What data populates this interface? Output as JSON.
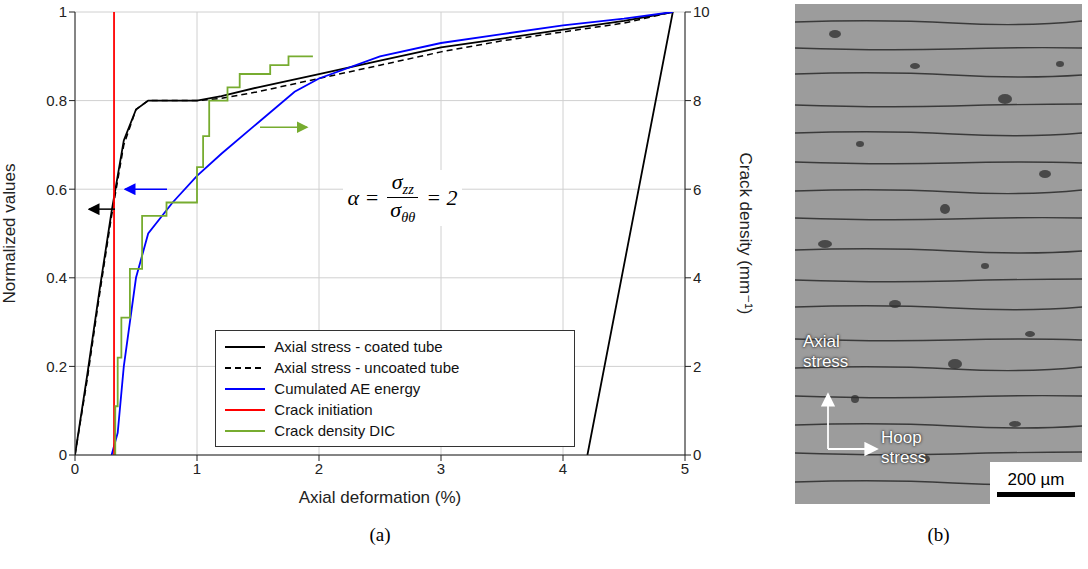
{
  "chart_data": {
    "type": "line",
    "panel_label": "(a)",
    "xlabel": "Axial deformation (%)",
    "ylabel": "Normalized values",
    "y2label": "Crack density (mm⁻¹)",
    "xlim": [
      0,
      5
    ],
    "xticks": [
      0,
      1,
      2,
      3,
      4,
      5
    ],
    "ylim": [
      0,
      1
    ],
    "yticks": [
      0,
      0.2,
      0.4,
      0.6,
      0.8,
      1
    ],
    "y2lim": [
      0,
      10
    ],
    "y2ticks": [
      0,
      2,
      4,
      6,
      8,
      10
    ],
    "grid": true,
    "legend": "lower right",
    "annotation": {
      "lhs": "α =",
      "numerator": "σzz",
      "denominator": "σθθ",
      "rhs": "= 2"
    },
    "series": [
      {
        "name": "Axial stress - coated tube",
        "color": "#000000",
        "line_style": "solid",
        "type": "line",
        "x": [
          0,
          0.1,
          0.2,
          0.3,
          0.4,
          0.5,
          0.6,
          0.8,
          1.0,
          1.2,
          1.5,
          2.0,
          2.5,
          3.0,
          3.5,
          4.0,
          4.5,
          4.9,
          4.2
        ],
        "values": [
          0,
          0.18,
          0.37,
          0.55,
          0.71,
          0.78,
          0.8,
          0.8,
          0.8,
          0.81,
          0.83,
          0.86,
          0.89,
          0.92,
          0.94,
          0.96,
          0.98,
          1.0,
          0
        ]
      },
      {
        "name": "Axial stress - uncoated tube",
        "color": "#000000",
        "line_style": "dashed",
        "type": "line",
        "x": [
          0,
          0.1,
          0.2,
          0.3,
          0.4,
          0.5,
          0.6,
          0.8,
          1.0,
          1.2,
          1.5,
          2.0,
          2.5,
          3.0,
          3.5,
          4.0,
          4.5,
          4.9
        ],
        "values": [
          0,
          0.17,
          0.36,
          0.54,
          0.7,
          0.78,
          0.8,
          0.8,
          0.8,
          0.805,
          0.82,
          0.85,
          0.88,
          0.91,
          0.935,
          0.955,
          0.975,
          1.0
        ]
      },
      {
        "name": "Cumulated AE energy",
        "color": "#0000ff",
        "line_style": "solid",
        "type": "line",
        "x": [
          0.3,
          0.35,
          0.4,
          0.5,
          0.6,
          0.8,
          1.0,
          1.2,
          1.5,
          1.8,
          2.0,
          2.5,
          3.0,
          3.5,
          4.0,
          4.5,
          4.9
        ],
        "values": [
          0,
          0.05,
          0.2,
          0.4,
          0.5,
          0.57,
          0.63,
          0.68,
          0.75,
          0.82,
          0.85,
          0.9,
          0.93,
          0.95,
          0.97,
          0.985,
          1.0
        ]
      },
      {
        "name": "Crack initiation",
        "color": "#ff0000",
        "line_style": "solid",
        "type": "line",
        "x": [
          0.32,
          0.32
        ],
        "values": [
          0,
          1
        ]
      },
      {
        "name": "Crack density DIC",
        "color": "#77ac30",
        "line_style": "solid",
        "type": "step",
        "axis": "y2",
        "x": [
          0.32,
          0.33,
          0.35,
          0.38,
          0.45,
          0.55,
          0.75,
          1.0,
          1.05,
          1.1,
          1.25,
          1.35,
          1.6,
          1.75,
          1.95
        ],
        "values": [
          0,
          1.1,
          2.2,
          3.1,
          4.2,
          5.4,
          5.7,
          6.5,
          7.2,
          8.0,
          8.3,
          8.6,
          8.8,
          9.0,
          9.0
        ]
      }
    ]
  },
  "image": {
    "panel_label": "(b)",
    "vertical_arrow_label": "Axial stress",
    "horizontal_arrow_label": "Hoop stress",
    "scale_bar": "200 µm"
  }
}
